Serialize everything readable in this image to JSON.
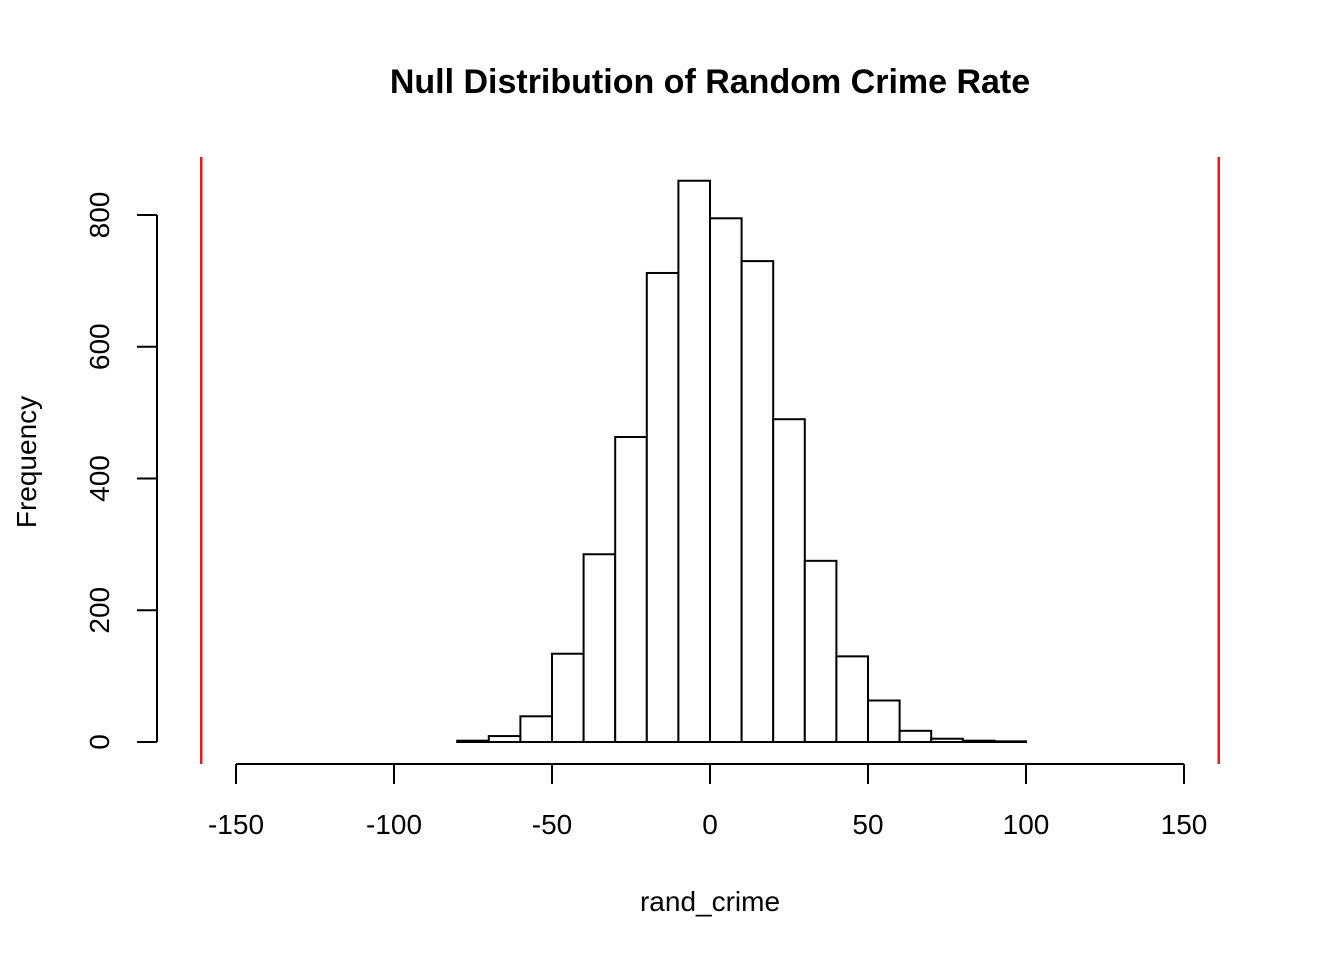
{
  "chart_data": {
    "type": "histogram",
    "title": "Null Distribution of Random Crime Rate",
    "xlabel": "rand_crime",
    "ylabel": "Frequency",
    "xlim": [
      -150,
      150
    ],
    "ylim": [
      0,
      800
    ],
    "x_ticks": [
      -150,
      -100,
      -50,
      0,
      50,
      100,
      150
    ],
    "y_ticks": [
      0,
      200,
      400,
      600,
      800
    ],
    "bin_width": 10,
    "bins": [
      {
        "start": -80,
        "end": -70,
        "count": 2
      },
      {
        "start": -70,
        "end": -60,
        "count": 9
      },
      {
        "start": -60,
        "end": -50,
        "count": 39
      },
      {
        "start": -50,
        "end": -40,
        "count": 134
      },
      {
        "start": -40,
        "end": -30,
        "count": 285
      },
      {
        "start": -30,
        "end": -20,
        "count": 463
      },
      {
        "start": -20,
        "end": -10,
        "count": 712
      },
      {
        "start": -10,
        "end": 0,
        "count": 852
      },
      {
        "start": 0,
        "end": 10,
        "count": 795
      },
      {
        "start": 10,
        "end": 20,
        "count": 730
      },
      {
        "start": 20,
        "end": 30,
        "count": 490
      },
      {
        "start": 30,
        "end": 40,
        "count": 275
      },
      {
        "start": 40,
        "end": 50,
        "count": 130
      },
      {
        "start": 50,
        "end": 60,
        "count": 63
      },
      {
        "start": 60,
        "end": 70,
        "count": 17
      },
      {
        "start": 70,
        "end": 80,
        "count": 5
      },
      {
        "start": 80,
        "end": 90,
        "count": 2
      },
      {
        "start": 90,
        "end": 100,
        "count": 1
      }
    ],
    "reference_lines": [
      {
        "x": -161,
        "color": "#e41a1c"
      },
      {
        "x": 161,
        "color": "#e41a1c"
      }
    ],
    "bar_fill": "#ffffff",
    "bar_stroke": "#000000",
    "grid": false,
    "legend": "none"
  }
}
